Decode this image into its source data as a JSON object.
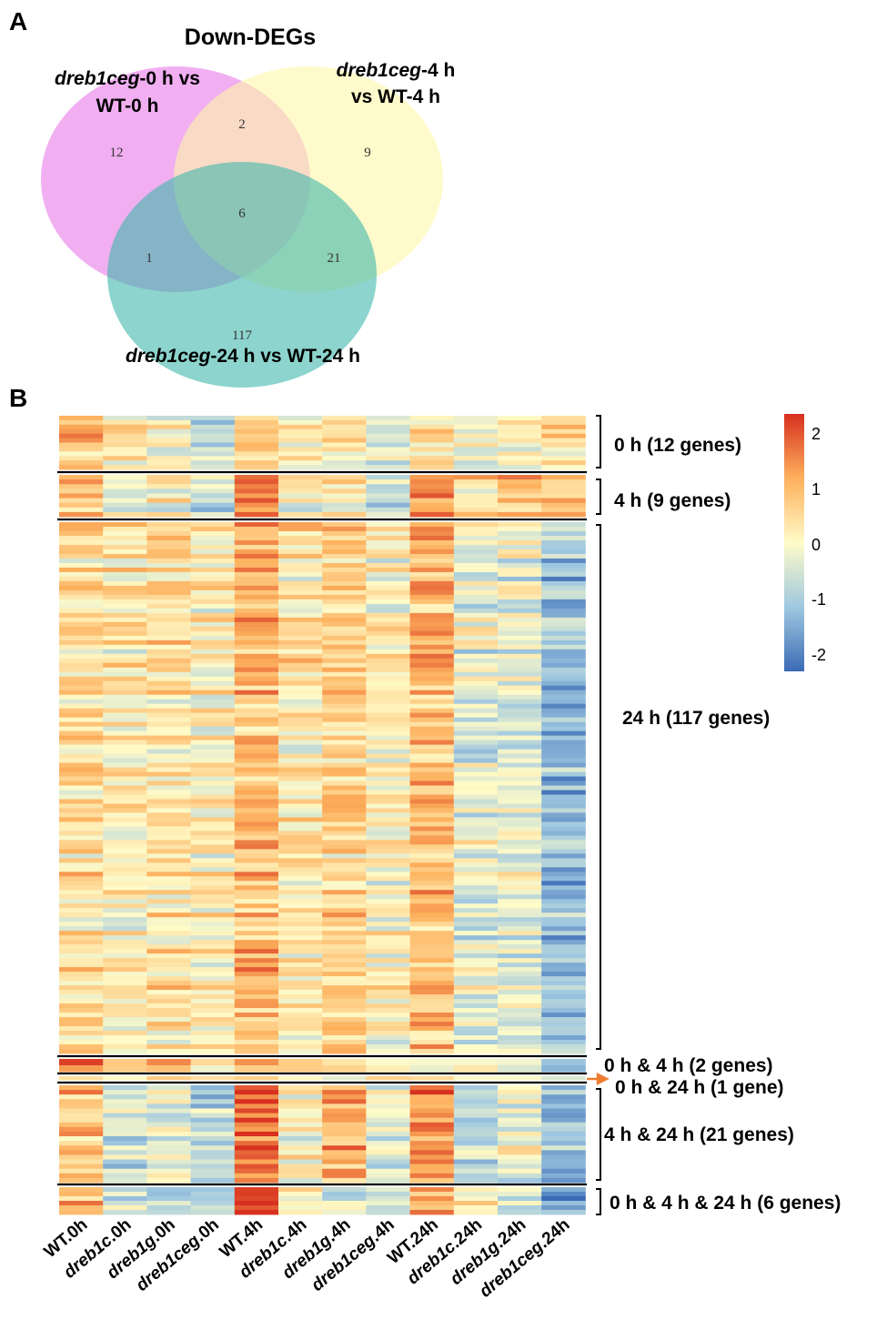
{
  "chart_data": [
    {
      "type": "venn",
      "panel": "A",
      "title": "Down-DEGs",
      "sets": [
        {
          "name": "dreb1ceg-0 h vs WT-0 h",
          "label_italic": "dreb1ceg",
          "label_rest_1": "-0 h vs",
          "label_line_2": "WT-0 h",
          "color": "#e879e8"
        },
        {
          "name": "dreb1ceg-4 h vs WT-4 h",
          "label_italic": "dreb1ceg",
          "label_rest_1": "-4 h",
          "label_line_2": "vs WT-4 h",
          "color": "#fff7a8"
        },
        {
          "name": "dreb1ceg-24 h vs WT-24 h",
          "label_italic": "dreb1ceg",
          "label_rest_1": "-24 h vs WT-24 h",
          "color": "#3fb8ac"
        }
      ],
      "regions": {
        "only_0h": "12",
        "only_4h": "9",
        "only_24h": "117",
        "0h_4h": "2",
        "0h_24h": "1",
        "4h_24h": "21",
        "all": "6"
      }
    },
    {
      "type": "heatmap",
      "panel": "B",
      "columns": [
        "WT.0h",
        "dreb1c.0h",
        "dreb1g.0h",
        "dreb1ceg.0h",
        "WT.4h",
        "dreb1c.4h",
        "dreb1g.4h",
        "dreb1ceg.4h",
        "WT.24h",
        "dreb1c.24h",
        "dreb1g.24h",
        "dreb1ceg.24h"
      ],
      "color_scale": {
        "min": -2.3,
        "max": 2.3,
        "ticks": [
          "2",
          "1",
          "0",
          "-1",
          "-2"
        ],
        "colors": [
          "#3b6bb5",
          "#9fc8e0",
          "#fffbc8",
          "#fdb05c",
          "#d7301f"
        ]
      },
      "groups": [
        {
          "label": "0 h (12 genes)",
          "genes": 12,
          "profile": [
            1.0,
            0.3,
            0.1,
            -0.6,
            0.8,
            0.2,
            0.4,
            -0.3,
            0.5,
            0.0,
            0.3,
            0.5
          ]
        },
        {
          "label": "4 h (9 genes)",
          "genes": 9,
          "profile": [
            0.6,
            -0.2,
            0.1,
            -0.5,
            1.6,
            0.0,
            0.3,
            -0.8,
            1.2,
            0.4,
            0.7,
            0.6
          ]
        },
        {
          "label": "24 h (117 genes)",
          "genes": 117,
          "profile": [
            0.4,
            0.2,
            0.3,
            0.1,
            0.9,
            0.3,
            0.6,
            0.1,
            0.9,
            -0.3,
            -0.3,
            -1.3
          ]
        },
        {
          "label": "0 h & 4 h (2 genes)",
          "genes": 2,
          "profile": [
            1.7,
            0.9,
            1.2,
            -0.2,
            0.6,
            0.5,
            0.7,
            -0.4,
            -0.2,
            -0.3,
            -0.4,
            -1.4
          ]
        },
        {
          "label": "0 h & 24 h (1 gene)",
          "genes": 1,
          "profile": [
            0.4,
            0.3,
            0.3,
            0.2,
            0.3,
            0.2,
            0.3,
            0.2,
            0.2,
            0.1,
            0.1,
            -0.3
          ],
          "arrow_color": "#ed7d31"
        },
        {
          "label": "4 h & 24 h (21 genes)",
          "genes": 21,
          "profile": [
            0.8,
            -0.6,
            -0.2,
            -0.7,
            1.8,
            0.1,
            1.1,
            -0.3,
            1.5,
            -0.8,
            -0.3,
            -1.3
          ]
        },
        {
          "label": "0 h & 4 h & 24 h (6 genes)",
          "genes": 6,
          "profile": [
            0.9,
            -0.4,
            -0.5,
            -0.9,
            2.1,
            0.4,
            -0.3,
            -0.6,
            1.2,
            0.5,
            -0.4,
            -1.5
          ]
        }
      ]
    }
  ]
}
